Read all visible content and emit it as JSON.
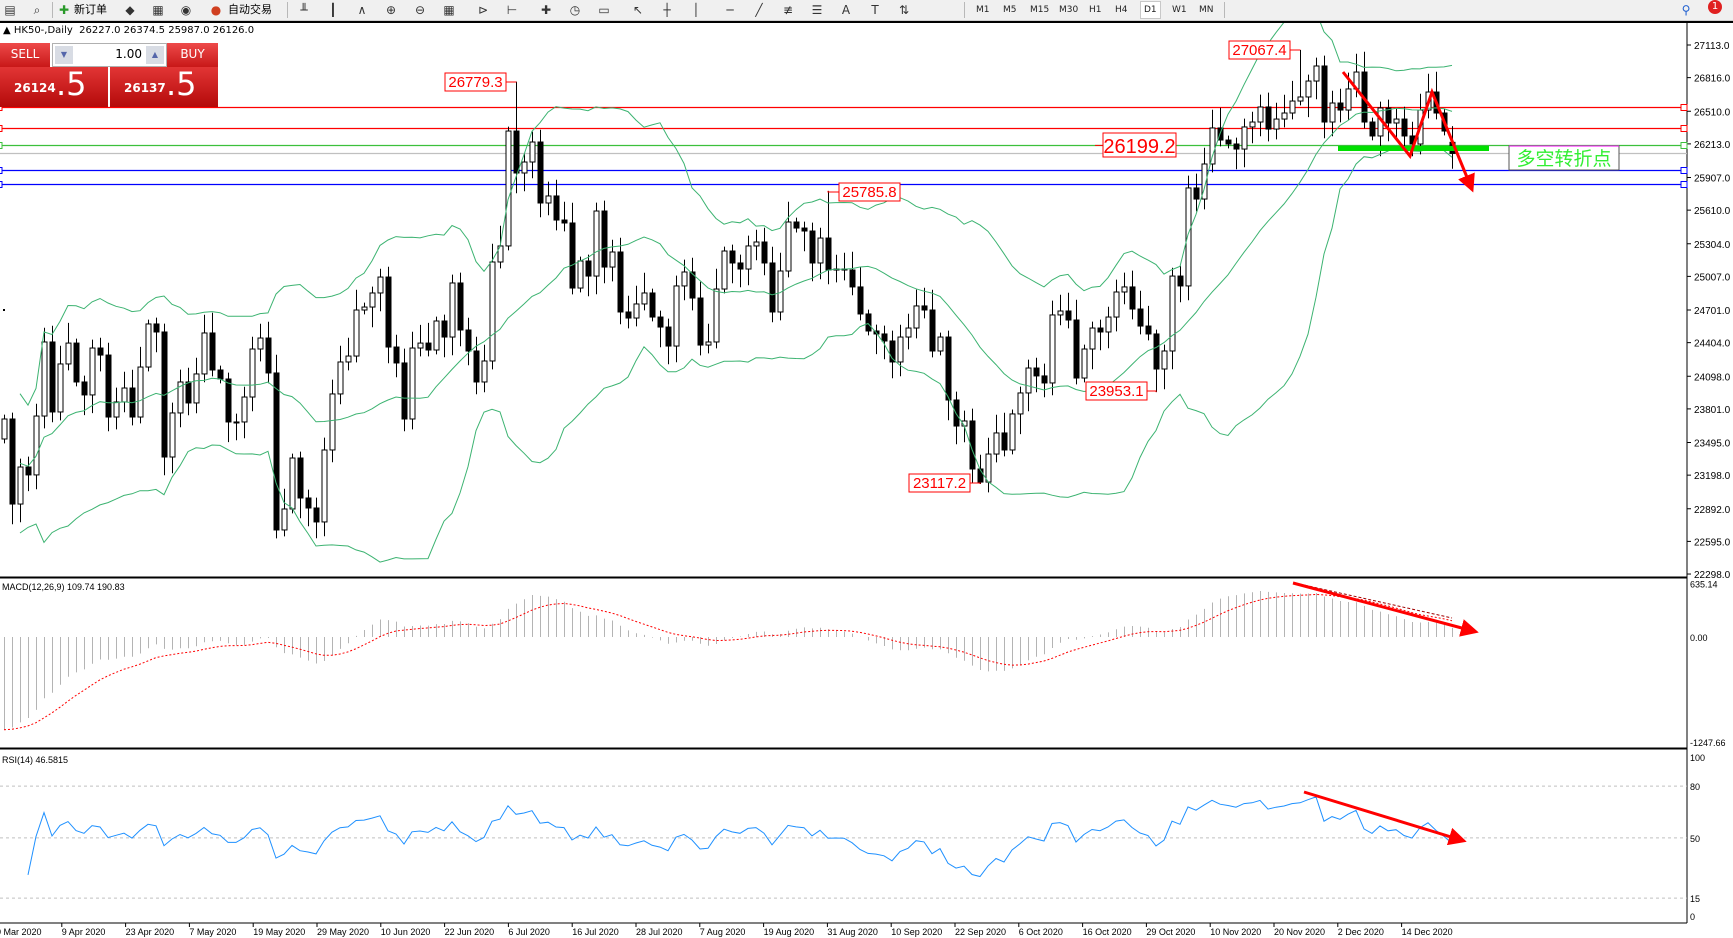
{
  "toolbar": {
    "new_order_label": "新订单",
    "auto_trading_label": "自动交易",
    "left_icons": [
      "file-icon",
      "magnifier-chart-icon"
    ],
    "mid_icons": [
      "gold-bars-icon",
      "market-watch-icon",
      "signal-antenna-icon"
    ],
    "chart_icons": [
      "bar-chart-icon",
      "candlestick-icon",
      "line-chart-icon",
      "zoom-in-icon",
      "zoom-out-icon",
      "tile-windows-icon",
      "chart-shift-icon",
      "autoscroll-icon",
      "add-indicator-icon",
      "period-clock-icon",
      "template-icon",
      "cursor-icon",
      "crosshair-icon",
      "vertical-line-icon",
      "horizontal-line-icon",
      "trendline-icon",
      "fibonacci-icon",
      "channel-icon",
      "text-icon",
      "text-label-icon",
      "arrows-icon"
    ],
    "timeframes": [
      "M1",
      "M5",
      "M15",
      "M30",
      "H1",
      "H4",
      "D1",
      "W1",
      "MN"
    ],
    "selected_timeframe": "D1",
    "notification_count": "1"
  },
  "chart_header": {
    "symbol_period": "HK50-,Daily",
    "ohlc": "26227.0 26374.5 25987.0 26126.0"
  },
  "one_click": {
    "sell_label": "SELL",
    "buy_label": "BUY",
    "lot": "1.00",
    "sell_big": "26124",
    "sell_small": ".5",
    "buy_big": "26137",
    "buy_small": ".5"
  },
  "annotation_text": "多空转折点",
  "colors": {
    "bull_body": "#ffffff",
    "bear_body": "#000000",
    "bands": "#3cb371",
    "macd_hist": "#b4b4b4",
    "macd_signal": "#ff0000",
    "rsi": "#1e90ff",
    "arrow": "#ff0000",
    "support_bar": "#00e000"
  },
  "chart_data": {
    "type": "candlestick",
    "symbol": "HK50-",
    "period": "Daily",
    "first_open": 23527,
    "last_bar": {
      "open": 26227.0,
      "high": 26374.5,
      "low": 25987.0,
      "close": 26126.0
    },
    "closes": [
      23709,
      22935,
      23272,
      23200,
      23736,
      24410,
      23773,
      24210,
      24400,
      24046,
      23928,
      24355,
      24291,
      23727,
      23864,
      23991,
      23727,
      24182,
      24574,
      24501,
      23363,
      23764,
      24046,
      23855,
      24119,
      24492,
      24155,
      24073,
      23682,
      23682,
      23909,
      24346,
      24446,
      24128,
      22699,
      22890,
      23354,
      22990,
      22899,
      22772,
      23427,
      23937,
      24228,
      24282,
      24701,
      24728,
      24856,
      25001,
      24364,
      24219,
      23709,
      24355,
      24400,
      24337,
      24601,
      24455,
      24947,
      24519,
      24328,
      24046,
      24237,
      25138,
      25284,
      26330,
      25948,
      26048,
      26230,
      25675,
      25739,
      25520,
      25493,
      24901,
      25147,
      25010,
      25602,
      25092,
      25229,
      24683,
      24628,
      24756,
      24856,
      24637,
      24546,
      24373,
      24920,
      25047,
      24810,
      24382,
      24410,
      24892,
      25238,
      25129,
      25074,
      25284,
      25320,
      25129,
      24683,
      25056,
      25502,
      25447,
      25420,
      25129,
      25356,
      25065,
      25074,
      25065,
      24911,
      24665,
      24510,
      24483,
      24419,
      24228,
      24455,
      24537,
      24738,
      24701,
      24328,
      24455,
      23882,
      23645,
      23691,
      23254,
      23135,
      23390,
      23582,
      23427,
      23755,
      23946,
      24173,
      24101,
      24037,
      24656,
      24692,
      24610,
      24082,
      24346,
      24537,
      24501,
      24637,
      24865,
      24911,
      24710,
      24555,
      24483,
      24164,
      24328,
      25010,
      24920,
      25812,
      25711,
      26030,
      26358,
      26248,
      26212,
      26166,
      26367,
      26412,
      26549,
      26348,
      26439,
      26494,
      26603,
      26640,
      26785,
      26922,
      26412,
      26585,
      26521,
      26713,
      26867,
      26412,
      26285,
      26540,
      26403,
      26439,
      26285,
      26212,
      26521,
      26685,
      26494,
      26330,
      26126
    ],
    "x_tick_labels": [
      "30 Mar 2020",
      "9 Apr 2020",
      "23 Apr 2020",
      "7 May 2020",
      "19 May 2020",
      "29 May 2020",
      "10 Jun 2020",
      "22 Jun 2020",
      "6 Jul 2020",
      "16 Jul 2020",
      "28 Jul 2020",
      "7 Aug 2020",
      "19 Aug 2020",
      "31 Aug 2020",
      "10 Sep 2020",
      "22 Sep 2020",
      "6 Oct 2020",
      "16 Oct 2020",
      "29 Oct 2020",
      "10 Nov 2020",
      "20 Nov 2020",
      "2 Dec 2020",
      "14 Dec 2020"
    ],
    "y_tick_labels": [
      "27113.0",
      "26816.0",
      "26510.0",
      "26213.0",
      "25907.0",
      "25610.0",
      "25304.0",
      "25007.0",
      "24701.0",
      "24404.0",
      "24098.0",
      "23801.0",
      "23495.0",
      "23198.0",
      "22892.0",
      "22595.0",
      "22298.0"
    ],
    "ylim": [
      22298.0,
      27113.0
    ],
    "horizontal_lines": [
      {
        "value": 26545.5,
        "label": "26545.5",
        "color": "#ff0000"
      },
      {
        "value": 26354.1,
        "label": "26354.1",
        "color": "#ff0000"
      },
      {
        "value": 26199.2,
        "label": "26199.2",
        "color": "#3cc03c"
      },
      {
        "value": 26126.0,
        "label": "26126.0",
        "color": "#000000",
        "line_color": "#c0c0c0"
      },
      {
        "value": 25971.3,
        "label": "25971.3",
        "color": "#0000ff"
      },
      {
        "value": 25843.7,
        "label": "25843.7",
        "color": "#0000ff"
      }
    ],
    "price_annotations": [
      {
        "label": "27067.4",
        "value": 27067.4,
        "kind": "high"
      },
      {
        "label": "26779.3",
        "value": 26779.3,
        "kind": "high"
      },
      {
        "label": "25785.8",
        "value": 25785.8,
        "kind": "high"
      },
      {
        "label": "26199.2",
        "value": 26199.2,
        "kind": "level"
      },
      {
        "label": "23953.1",
        "value": 23953.1,
        "kind": "low"
      },
      {
        "label": "23117.2",
        "value": 23117.2,
        "kind": "low"
      }
    ],
    "indicators": {
      "bollinger": {
        "period": 20,
        "deviation": 2
      },
      "macd": {
        "label": "MACD(12,26,9) 109.74 190.83",
        "fast": 12,
        "slow": 26,
        "signal": 9,
        "main": 109.74,
        "signal_value": 190.83,
        "ticks": [
          "635.14",
          "0.00",
          "-1247.66"
        ],
        "ylim": [
          -1247.66,
          635.14
        ]
      },
      "rsi": {
        "label": "RSI(14) 46.5815",
        "period": 14,
        "value": 46.5815,
        "levels": [
          80,
          50,
          15
        ],
        "ticks": [
          "100",
          "80",
          "50",
          "15",
          "0"
        ],
        "ylim": [
          0,
          100
        ]
      }
    }
  }
}
